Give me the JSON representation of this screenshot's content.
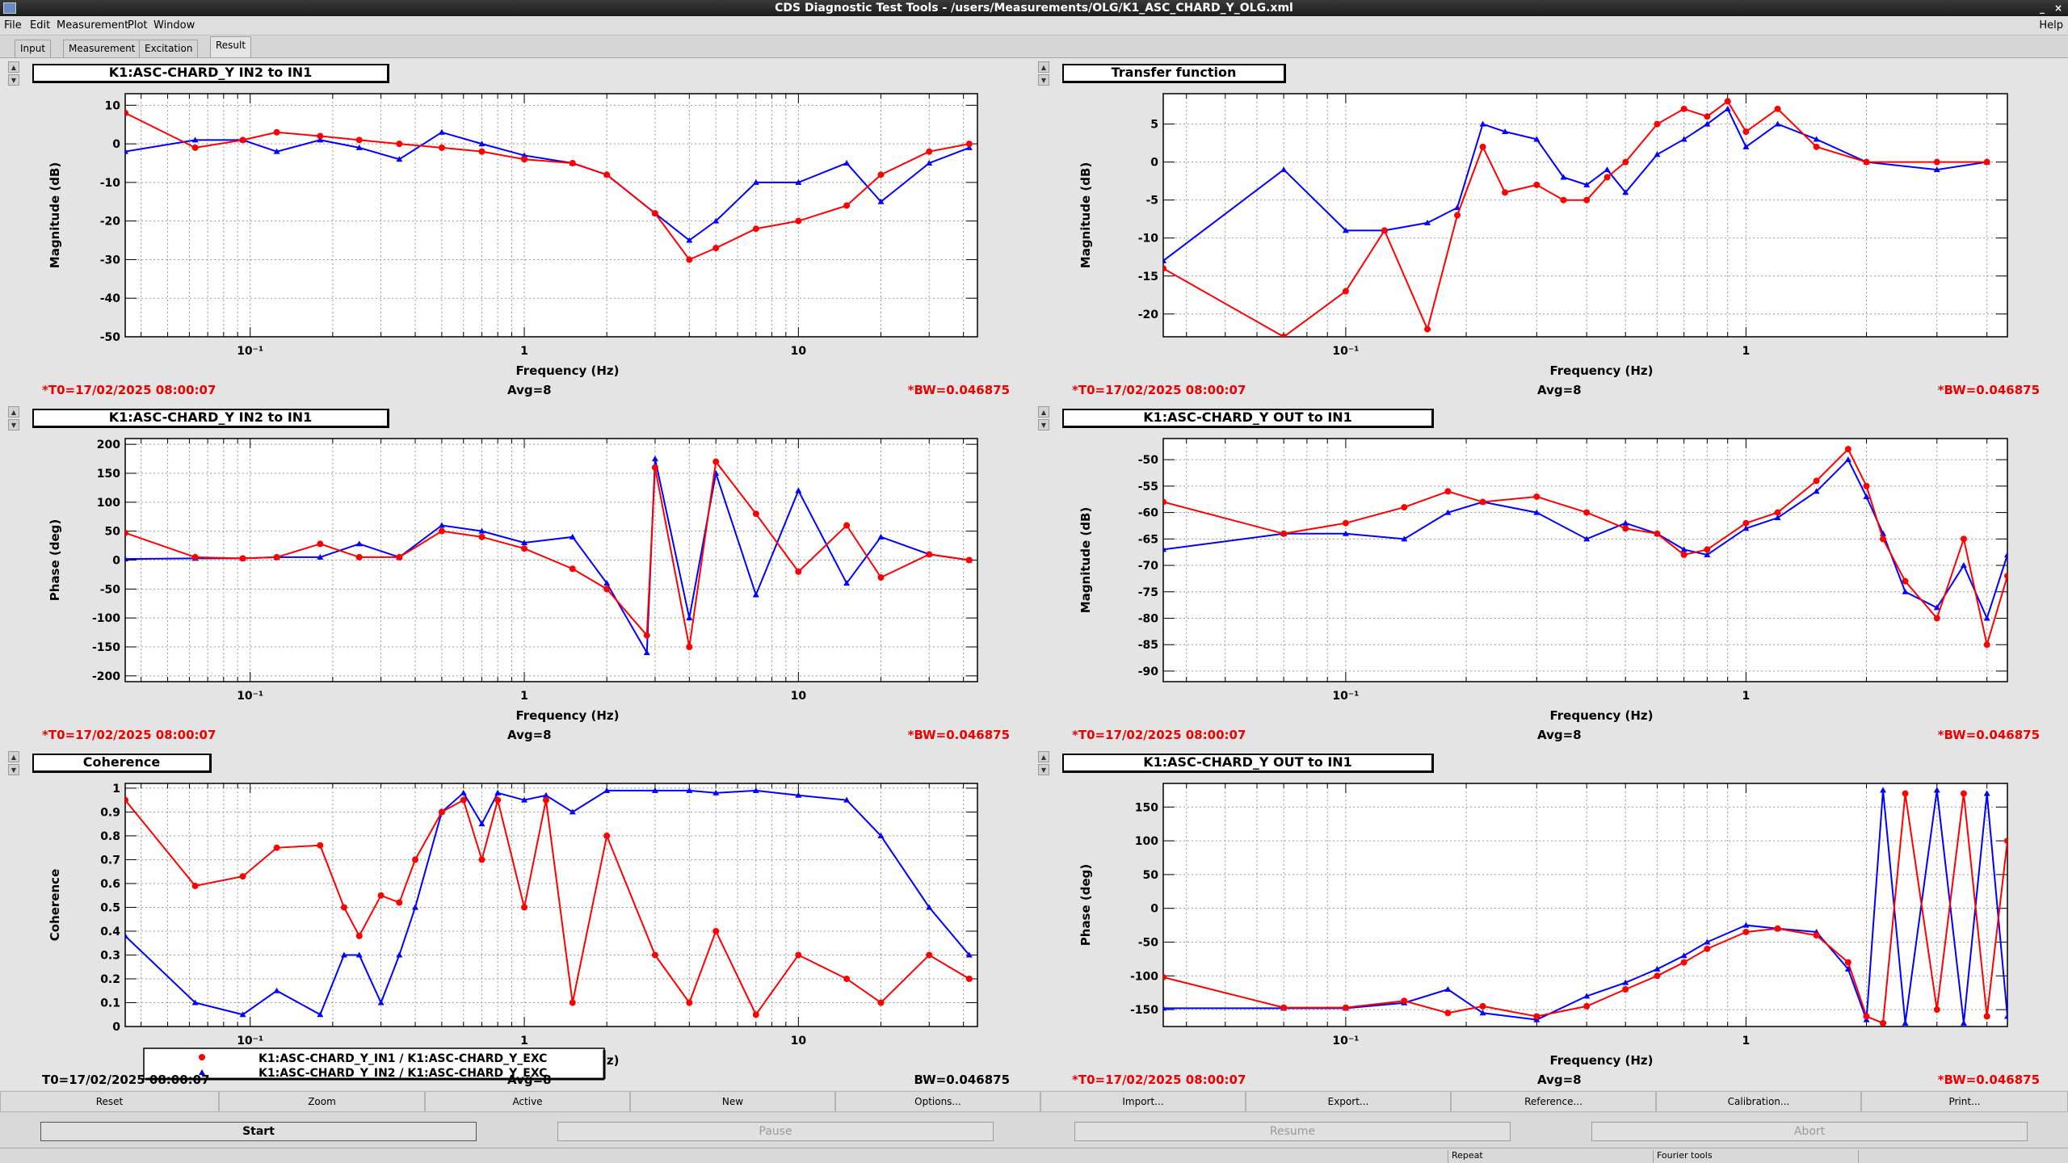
{
  "window": {
    "title": "CDS Diagnostic Test Tools - /users/Measurements/OLG/K1_ASC_CHARD_Y_OLG.xml",
    "minimize": "_",
    "close": "×"
  },
  "menu": {
    "items": [
      "File",
      "Edit",
      "Measurement",
      "Plot",
      "Window"
    ],
    "help": "Help"
  },
  "tabs": [
    "Input",
    "Measurement",
    "Excitation",
    "Result"
  ],
  "active_tab": "Result",
  "colors": {
    "series_in1": "#ff0000",
    "series_in2": "#0000ff",
    "title_bg": "#ffffff",
    "highlight_text": "#e00000"
  },
  "panels": [
    {
      "title": "K1:ASC-CHARD_Y IN2 to IN1",
      "t0": "*T0=17/02/2025 08:00:07",
      "avg": "Avg=8",
      "bw": "*BW=0.046875",
      "chart_data": {
        "type": "line",
        "xscale": "log",
        "xlim": [
          0.035,
          45
        ],
        "ylim": [
          -50,
          13
        ],
        "xlabel": "Frequency (Hz)",
        "ylabel": "Magnitude (dB)",
        "xticklabels": [
          "10⁻¹",
          "1",
          "10"
        ],
        "yticks": [
          10,
          0,
          -10,
          -20,
          -30,
          -40,
          -50
        ],
        "grid": true,
        "series": [
          {
            "color": "#ff0000",
            "marker": "circle",
            "x": [
              0.035,
              0.063,
              0.094,
              0.125,
              0.18,
              0.25,
              0.35,
              0.5,
              0.7,
              1.0,
              1.5,
              2.0,
              3.0,
              4.0,
              5.0,
              7.0,
              10.0,
              15.0,
              20.0,
              30.0,
              42.0
            ],
            "y": [
              8,
              -1,
              1,
              3,
              2,
              1,
              0,
              -1,
              -2,
              -4,
              -5,
              -8,
              -18,
              -30,
              -27,
              -22,
              -20,
              -16,
              -8,
              -2,
              0
            ]
          },
          {
            "color": "#0000ff",
            "marker": "triangle",
            "x": [
              0.035,
              0.063,
              0.094,
              0.125,
              0.18,
              0.25,
              0.35,
              0.5,
              0.7,
              1.0,
              1.5,
              2.0,
              3.0,
              4.0,
              5.0,
              7.0,
              10.0,
              15.0,
              20.0,
              30.0,
              42.0
            ],
            "y": [
              -2,
              1,
              1,
              -2,
              1,
              -1,
              -4,
              3,
              0,
              -3,
              -5,
              -8,
              -18,
              -25,
              -20,
              -10,
              -10,
              -5,
              -15,
              -5,
              -1
            ]
          }
        ]
      }
    },
    {
      "title": "Transfer function",
      "t0": "*T0=17/02/2025 08:00:07",
      "avg": "Avg=8",
      "bw": "*BW=0.046875",
      "chart_data": {
        "type": "line",
        "xscale": "log",
        "xlim": [
          0.035,
          4.5
        ],
        "ylim": [
          -23,
          9
        ],
        "xlabel": "Frequency (Hz)",
        "ylabel": "Magnitude (dB)",
        "xticklabels": [
          "10⁻¹",
          "1"
        ],
        "yticks": [
          5,
          0,
          -5,
          -10,
          -15,
          -20
        ],
        "grid": true,
        "series": [
          {
            "color": "#ff0000",
            "marker": "circle",
            "x": [
              0.035,
              0.07,
              0.1,
              0.125,
              0.16,
              0.19,
              0.22,
              0.25,
              0.3,
              0.35,
              0.4,
              0.45,
              0.5,
              0.6,
              0.7,
              0.8,
              0.9,
              1.0,
              1.2,
              1.5,
              2.0,
              3.0,
              4.0
            ],
            "y": [
              -14,
              -23,
              -17,
              -9,
              -22,
              -7,
              2,
              -4,
              -3,
              -5,
              -5,
              -2,
              0,
              5,
              7,
              6,
              8,
              4,
              7,
              2,
              0,
              0,
              0
            ]
          },
          {
            "color": "#0000ff",
            "marker": "triangle",
            "x": [
              0.035,
              0.07,
              0.1,
              0.125,
              0.16,
              0.19,
              0.22,
              0.25,
              0.3,
              0.35,
              0.4,
              0.45,
              0.5,
              0.6,
              0.7,
              0.8,
              0.9,
              1.0,
              1.2,
              1.5,
              2.0,
              3.0,
              4.0
            ],
            "y": [
              -13,
              -1,
              -9,
              -9,
              -8,
              -6,
              5,
              4,
              3,
              -2,
              -3,
              -1,
              -4,
              1,
              3,
              5,
              7,
              2,
              5,
              3,
              0,
              -1,
              0
            ]
          }
        ]
      }
    },
    {
      "title": "K1:ASC-CHARD_Y IN2 to IN1",
      "t0": "*T0=17/02/2025 08:00:07",
      "avg": "Avg=8",
      "bw": "*BW=0.046875",
      "chart_data": {
        "type": "line",
        "xscale": "log",
        "xlim": [
          0.035,
          45
        ],
        "ylim": [
          -210,
          210
        ],
        "xlabel": "Frequency (Hz)",
        "ylabel": "Phase (deg)",
        "xticklabels": [
          "10⁻¹",
          "1",
          "10"
        ],
        "yticks": [
          200,
          150,
          100,
          50,
          0,
          -50,
          -100,
          -150,
          -200
        ],
        "grid": true,
        "series": [
          {
            "color": "#ff0000",
            "marker": "circle",
            "x": [
              0.035,
              0.063,
              0.094,
              0.125,
              0.18,
              0.25,
              0.35,
              0.5,
              0.7,
              1.0,
              1.5,
              2.0,
              2.8,
              3.0,
              4.0,
              5.0,
              7.0,
              10.0,
              15.0,
              20.0,
              30.0,
              42.0
            ],
            "y": [
              47,
              5,
              3,
              5,
              28,
              5,
              5,
              50,
              40,
              20,
              -15,
              -50,
              -130,
              160,
              -150,
              170,
              80,
              -20,
              60,
              -30,
              10,
              0
            ]
          },
          {
            "color": "#0000ff",
            "marker": "triangle",
            "x": [
              0.035,
              0.063,
              0.094,
              0.125,
              0.18,
              0.25,
              0.35,
              0.5,
              0.7,
              1.0,
              1.5,
              2.0,
              2.8,
              3.0,
              4.0,
              5.0,
              7.0,
              10.0,
              15.0,
              20.0,
              30.0,
              42.0
            ],
            "y": [
              2,
              3,
              3,
              5,
              5,
              28,
              5,
              60,
              50,
              30,
              40,
              -40,
              -160,
              175,
              -100,
              150,
              -60,
              120,
              -40,
              40,
              10,
              0
            ]
          }
        ]
      }
    },
    {
      "title": "K1:ASC-CHARD_Y OUT to IN1",
      "t0": "*T0=17/02/2025 08:00:07",
      "avg": "Avg=8",
      "bw": "*BW=0.046875",
      "chart_data": {
        "type": "line",
        "xscale": "log",
        "xlim": [
          0.035,
          4.5
        ],
        "ylim": [
          -92,
          -46
        ],
        "xlabel": "Frequency (Hz)",
        "ylabel": "Magnitude (dB)",
        "xticklabels": [
          "10⁻¹",
          "1"
        ],
        "yticks": [
          -50,
          -55,
          -60,
          -65,
          -70,
          -75,
          -80,
          -85,
          -90
        ],
        "grid": true,
        "series": [
          {
            "color": "#ff0000",
            "marker": "circle",
            "x": [
              0.035,
              0.07,
              0.1,
              0.14,
              0.18,
              0.22,
              0.3,
              0.4,
              0.5,
              0.6,
              0.7,
              0.8,
              1.0,
              1.2,
              1.5,
              1.8,
              2.0,
              2.2,
              2.5,
              3.0,
              3.5,
              4.0,
              4.5
            ],
            "y": [
              -58,
              -64,
              -62,
              -59,
              -56,
              -58,
              -57,
              -60,
              -63,
              -64,
              -68,
              -67,
              -62,
              -60,
              -54,
              -48,
              -55,
              -65,
              -73,
              -80,
              -65,
              -85,
              -72
            ]
          },
          {
            "color": "#0000ff",
            "marker": "triangle",
            "x": [
              0.035,
              0.07,
              0.1,
              0.14,
              0.18,
              0.22,
              0.3,
              0.4,
              0.5,
              0.6,
              0.7,
              0.8,
              1.0,
              1.2,
              1.5,
              1.8,
              2.0,
              2.2,
              2.5,
              3.0,
              3.5,
              4.0,
              4.5
            ],
            "y": [
              -67,
              -64,
              -64,
              -65,
              -60,
              -58,
              -60,
              -65,
              -62,
              -64,
              -67,
              -68,
              -63,
              -61,
              -56,
              -50,
              -57,
              -64,
              -75,
              -78,
              -70,
              -80,
              -68
            ]
          }
        ]
      }
    },
    {
      "title": "Coherence",
      "t0": "T0=17/02/2025 08:00:07",
      "avg": "Avg=8",
      "bw": "BW=0.046875",
      "chart_data": {
        "type": "line",
        "xscale": "log",
        "xlim": [
          0.035,
          45
        ],
        "ylim": [
          0,
          1.02
        ],
        "xlabel": "Frequency (Hz)",
        "ylabel": "Coherence",
        "xticklabels": [
          "10⁻¹",
          "1",
          "10"
        ],
        "yticks": [
          1,
          0.9,
          0.8,
          0.7,
          0.6,
          0.5,
          0.4,
          0.3,
          0.2,
          0.1,
          0
        ],
        "grid": true,
        "legend": [
          "K1:ASC-CHARD_Y_IN1 / K1:ASC-CHARD_Y_EXC",
          "K1:ASC-CHARD_Y_IN2 / K1:ASC-CHARD_Y_EXC"
        ],
        "series": [
          {
            "name": "K1:ASC-CHARD_Y_IN1 / K1:ASC-CHARD_Y_EXC",
            "color": "#ff0000",
            "marker": "circle",
            "x": [
              0.035,
              0.063,
              0.094,
              0.125,
              0.18,
              0.22,
              0.25,
              0.3,
              0.35,
              0.4,
              0.5,
              0.6,
              0.7,
              0.8,
              1.0,
              1.2,
              1.5,
              2.0,
              3.0,
              4.0,
              5.0,
              7.0,
              10.0,
              15.0,
              20.0,
              30.0,
              42.0
            ],
            "y": [
              0.95,
              0.59,
              0.63,
              0.75,
              0.76,
              0.5,
              0.38,
              0.55,
              0.52,
              0.7,
              0.9,
              0.95,
              0.7,
              0.95,
              0.5,
              0.95,
              0.1,
              0.8,
              0.3,
              0.1,
              0.4,
              0.05,
              0.3,
              0.2,
              0.1,
              0.3,
              0.2
            ]
          },
          {
            "name": "K1:ASC-CHARD_Y_IN2 / K1:ASC-CHARD_Y_EXC",
            "color": "#0000ff",
            "marker": "triangle",
            "x": [
              0.035,
              0.063,
              0.094,
              0.125,
              0.18,
              0.22,
              0.25,
              0.3,
              0.35,
              0.4,
              0.5,
              0.6,
              0.7,
              0.8,
              1.0,
              1.2,
              1.5,
              2.0,
              3.0,
              4.0,
              5.0,
              7.0,
              10.0,
              15.0,
              20.0,
              30.0,
              42.0
            ],
            "y": [
              0.38,
              0.1,
              0.05,
              0.15,
              0.05,
              0.3,
              0.3,
              0.1,
              0.3,
              0.5,
              0.9,
              0.98,
              0.85,
              0.98,
              0.95,
              0.97,
              0.9,
              0.99,
              0.99,
              0.99,
              0.98,
              0.99,
              0.97,
              0.95,
              0.8,
              0.5,
              0.3
            ]
          }
        ]
      }
    },
    {
      "title": "K1:ASC-CHARD_Y OUT to IN1",
      "t0": "*T0=17/02/2025 08:00:07",
      "avg": "Avg=8",
      "bw": "*BW=0.046875",
      "chart_data": {
        "type": "line",
        "xscale": "log",
        "xlim": [
          0.035,
          4.5
        ],
        "ylim": [
          -175,
          185
        ],
        "xlabel": "Frequency (Hz)",
        "ylabel": "Phase (deg)",
        "xticklabels": [
          "10⁻¹",
          "1"
        ],
        "yticks": [
          150,
          100,
          50,
          0,
          -50,
          -100,
          -150
        ],
        "grid": true,
        "series": [
          {
            "color": "#ff0000",
            "marker": "circle",
            "x": [
              0.035,
              0.07,
              0.1,
              0.14,
              0.18,
              0.22,
              0.3,
              0.4,
              0.5,
              0.6,
              0.7,
              0.8,
              1.0,
              1.2,
              1.5,
              1.8,
              2.0,
              2.2,
              2.5,
              3.0,
              3.5,
              4.0,
              4.5
            ],
            "y": [
              -102,
              -147,
              -147,
              -137,
              -155,
              -145,
              -160,
              -145,
              -120,
              -100,
              -80,
              -60,
              -35,
              -30,
              -40,
              -80,
              -160,
              -170,
              170,
              -150,
              170,
              -160,
              100
            ]
          },
          {
            "color": "#0000ff",
            "marker": "triangle",
            "x": [
              0.035,
              0.07,
              0.1,
              0.14,
              0.18,
              0.22,
              0.3,
              0.4,
              0.5,
              0.6,
              0.7,
              0.8,
              1.0,
              1.2,
              1.5,
              1.8,
              2.0,
              2.2,
              2.5,
              3.0,
              3.5,
              4.0,
              4.5
            ],
            "y": [
              -148,
              -148,
              -148,
              -140,
              -120,
              -155,
              -165,
              -130,
              -110,
              -90,
              -70,
              -50,
              -25,
              -30,
              -35,
              -90,
              -165,
              175,
              -170,
              175,
              -170,
              170,
              -160
            ]
          }
        ]
      }
    }
  ],
  "buttons_row1": [
    "Reset",
    "Zoom",
    "Active",
    "New",
    "Options...",
    "Import...",
    "Export...",
    "Reference...",
    "Calibration...",
    "Print..."
  ],
  "buttons_row2": [
    "Start",
    "Pause",
    "Resume",
    "Abort"
  ],
  "status": [
    "Repeat",
    "Fourier tools"
  ]
}
